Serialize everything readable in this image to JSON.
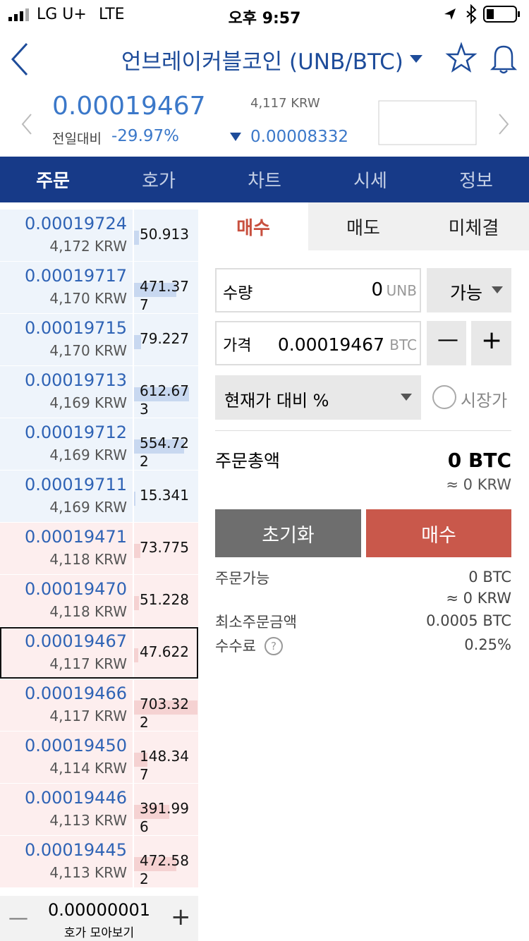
{
  "status": {
    "carrier": "LG U+",
    "network": "LTE",
    "time": "오후 9:57"
  },
  "header": {
    "title": "언브레이커블코인 (UNB/BTC)"
  },
  "ticker": {
    "price": "0.00019467",
    "change_label": "전일대비",
    "change_pct": "-29.97%",
    "krw": "4,117 KRW",
    "change": "0.00008332"
  },
  "tabs": [
    "주문",
    "호가",
    "차트",
    "시세",
    "정보"
  ],
  "order_book": {
    "asks": [
      {
        "price": "0.00019724",
        "krw": "4,172 KRW",
        "qty": 50.913
      },
      {
        "price": "0.00019717",
        "krw": "4,170 KRW",
        "qty": 471.377
      },
      {
        "price": "0.00019715",
        "krw": "4,170 KRW",
        "qty": 79.227
      },
      {
        "price": "0.00019713",
        "krw": "4,169 KRW",
        "qty": 612.673
      },
      {
        "price": "0.00019712",
        "krw": "4,169 KRW",
        "qty": 554.722
      },
      {
        "price": "0.00019711",
        "krw": "4,169 KRW",
        "qty": 15.341
      }
    ],
    "bids": [
      {
        "price": "0.00019471",
        "krw": "4,118 KRW",
        "qty": 73.775
      },
      {
        "price": "0.00019470",
        "krw": "4,118 KRW",
        "qty": 51.228
      },
      {
        "price": "0.00019467",
        "krw": "4,117 KRW",
        "qty": 47.622,
        "selected": true
      },
      {
        "price": "0.00019466",
        "krw": "4,117 KRW",
        "qty": 703.322
      },
      {
        "price": "0.00019450",
        "krw": "4,114 KRW",
        "qty": 148.347
      },
      {
        "price": "0.00019446",
        "krw": "4,113 KRW",
        "qty": 391.996
      },
      {
        "price": "0.00019445",
        "krw": "4,113 KRW",
        "qty": 472.582
      }
    ],
    "unit": "0.00000001",
    "group_label": "호가 모아보기"
  },
  "order_form": {
    "tabs": [
      "매수",
      "매도",
      "미체결"
    ],
    "quantity_label": "수량",
    "quantity_value": "0",
    "quantity_unit": "UNB",
    "available": "가능",
    "price_label": "가격",
    "price_value": "0.00019467",
    "price_unit": "BTC",
    "percent_select": "현재가 대비 %",
    "market_label": "시장가",
    "total_label": "주문총액",
    "total_btc": "0 BTC",
    "total_krw": "≈ 0 KRW",
    "reset": "초기화",
    "buy": "매수",
    "info": [
      {
        "label": "주문가능",
        "values": [
          "0 BTC",
          "≈ 0 KRW"
        ]
      },
      {
        "label": "최소주문금액",
        "values": [
          "0.0005 BTC"
        ]
      },
      {
        "label": "수수료",
        "values": [
          "0.25%"
        ]
      }
    ]
  }
}
